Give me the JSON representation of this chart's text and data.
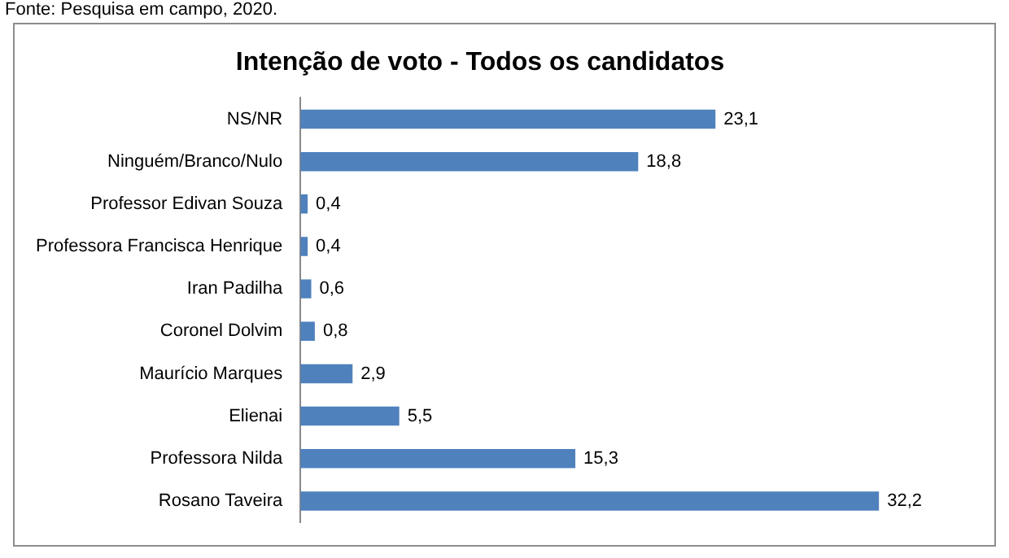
{
  "chart_data": {
    "type": "bar",
    "orientation": "horizontal",
    "title": "Intenção de voto - Todos os candidatos",
    "annotations": [
      "Fonte: Pesquisa em campo, 2020."
    ],
    "categories": [
      "NS/NR",
      "Ninguém/Branco/Nulo",
      "Professor Edivan Souza",
      "Professora Francisca Henrique",
      "Iran Padilha",
      "Coronel Dolvim",
      "Maurício Marques",
      "Elienai",
      "Professora Nilda",
      "Rosano Taveira"
    ],
    "values": [
      23.1,
      18.8,
      0.4,
      0.4,
      0.6,
      0.8,
      2.9,
      5.5,
      15.3,
      32.2
    ],
    "value_labels": [
      "23,1",
      "18,8",
      "0,4",
      "0,4",
      "0,6",
      "0,8",
      "2,9",
      "5,5",
      "15,3",
      "32,2"
    ],
    "color": "#4f81bd",
    "tick_labels": "y",
    "legend": false
  }
}
